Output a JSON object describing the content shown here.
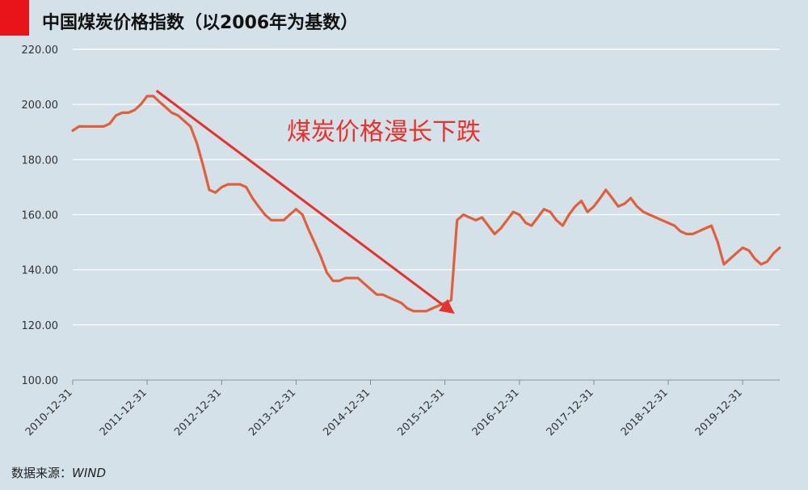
{
  "header": {
    "title": "中国煤炭价格指数（以2006年为基数）",
    "accent_color": "#e8141a"
  },
  "footer": {
    "source_label": "数据来源：",
    "source_value": "WIND"
  },
  "colors": {
    "background": "#d4e1e8",
    "line": "#e0603e",
    "grid": "#ffffff",
    "annotation": "#e5322d"
  },
  "chart_data": {
    "type": "line",
    "title": "中国煤炭价格指数（以2006年为基数）",
    "xlabel": "",
    "ylabel": "",
    "ylim": [
      100,
      220
    ],
    "xlim": [
      "2010-12-31",
      "2020-06-30"
    ],
    "grid": true,
    "y_ticks": [
      "100.00",
      "120.00",
      "140.00",
      "160.00",
      "180.00",
      "200.00",
      "220.00"
    ],
    "x_ticks": [
      "2010-12-31",
      "2011-12-31",
      "2012-12-31",
      "2013-12-31",
      "2014-12-31",
      "2015-12-31",
      "2016-12-31",
      "2017-12-31",
      "2018-12-31",
      "2019-12-31"
    ],
    "annotation": {
      "text": "煤炭价格漫长下跌",
      "arrow_from": [
        "2012-02-15",
        205
      ],
      "arrow_to": [
        "2016-01-31",
        125
      ]
    },
    "series": [
      {
        "x": [
          "2010-12-31",
          "2011-01-31",
          "2011-02-28",
          "2011-03-31",
          "2011-04-30",
          "2011-05-31",
          "2011-06-30",
          "2011-07-31",
          "2011-08-31",
          "2011-09-30",
          "2011-10-31",
          "2011-11-30",
          "2011-12-31",
          "2012-01-31",
          "2012-02-29",
          "2012-03-31",
          "2012-04-30",
          "2012-05-31",
          "2012-06-30",
          "2012-07-31",
          "2012-08-31",
          "2012-09-30",
          "2012-10-31",
          "2012-11-30",
          "2012-12-31",
          "2013-01-31",
          "2013-02-28",
          "2013-03-31",
          "2013-04-30",
          "2013-05-31",
          "2013-06-30",
          "2013-07-31",
          "2013-08-31",
          "2013-09-30",
          "2013-10-31",
          "2013-11-30",
          "2013-12-31",
          "2014-01-31",
          "2014-02-28",
          "2014-03-31",
          "2014-04-30",
          "2014-05-31",
          "2014-06-30",
          "2014-07-31",
          "2014-08-31",
          "2014-09-30",
          "2014-10-31",
          "2014-11-30",
          "2014-12-31",
          "2015-01-31",
          "2015-02-28",
          "2015-03-31",
          "2015-04-30",
          "2015-05-31",
          "2015-06-30",
          "2015-07-31",
          "2015-08-31",
          "2015-09-30",
          "2015-10-31",
          "2015-11-30",
          "2015-12-31",
          "2016-01-31",
          "2016-02-29",
          "2016-03-31",
          "2016-04-30",
          "2016-05-31",
          "2016-06-30",
          "2016-07-31",
          "2016-08-31",
          "2016-09-30",
          "2016-10-31",
          "2016-11-30",
          "2016-12-31",
          "2017-01-31",
          "2017-02-28",
          "2017-03-31",
          "2017-04-30",
          "2017-05-31",
          "2017-06-30",
          "2017-07-31",
          "2017-08-31",
          "2017-09-30",
          "2017-10-31",
          "2017-11-30",
          "2017-12-31",
          "2018-01-31",
          "2018-02-28",
          "2018-03-31",
          "2018-04-30",
          "2018-05-31",
          "2018-06-30",
          "2018-07-31",
          "2018-08-31",
          "2018-09-30",
          "2018-10-31",
          "2018-11-30",
          "2018-12-31",
          "2019-01-31",
          "2019-02-28",
          "2019-03-31",
          "2019-04-30",
          "2019-05-31",
          "2019-06-30",
          "2019-07-31",
          "2019-08-31",
          "2019-09-30",
          "2019-10-31",
          "2019-11-30",
          "2019-12-31",
          "2020-01-31",
          "2020-02-29",
          "2020-03-31",
          "2020-04-30",
          "2020-05-31",
          "2020-06-30"
        ],
        "values": [
          190.5,
          192,
          192,
          192,
          192,
          192,
          193,
          196,
          197,
          197,
          198,
          200,
          203,
          203,
          201,
          199,
          197,
          196,
          194,
          192,
          186,
          178,
          169,
          168,
          170,
          171,
          171,
          171,
          170,
          166,
          163,
          160,
          158,
          158,
          158,
          160,
          162,
          160,
          155,
          150,
          145,
          139,
          136,
          136,
          137,
          137,
          137,
          135,
          133,
          131,
          131,
          130,
          129,
          128,
          126,
          125,
          125,
          125,
          126,
          127,
          128,
          129,
          158,
          160,
          159,
          158,
          159,
          156,
          153,
          155,
          158,
          161,
          160,
          157,
          156,
          159,
          162,
          161,
          158,
          156,
          160,
          163,
          165,
          161,
          163,
          166,
          169,
          166,
          163,
          164,
          166,
          163,
          161,
          160,
          159,
          158,
          157,
          156,
          154,
          153,
          153,
          154,
          155,
          156,
          150,
          142,
          144,
          146,
          148,
          147,
          144,
          142,
          143,
          146,
          148
        ]
      }
    ]
  }
}
